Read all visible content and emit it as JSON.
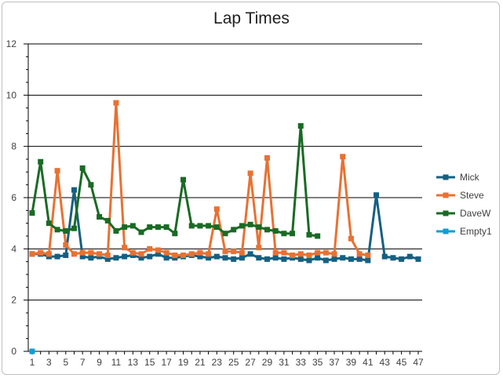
{
  "chart_data": {
    "type": "line",
    "title": "Lap Times",
    "xlabel": "",
    "ylabel": "",
    "ylim": [
      0,
      12
    ],
    "yticks": [
      0,
      2,
      4,
      6,
      8,
      10,
      12
    ],
    "xlim": [
      1,
      47
    ],
    "xticks": [
      1,
      3,
      5,
      7,
      9,
      11,
      13,
      15,
      17,
      19,
      21,
      23,
      25,
      27,
      29,
      31,
      33,
      35,
      37,
      39,
      41,
      43,
      45,
      47
    ],
    "grid": "horizontal",
    "legend": "right",
    "series": [
      {
        "name": "Mick",
        "color": "#156082",
        "x": [
          1,
          2,
          3,
          4,
          5,
          6,
          7,
          8,
          9,
          10,
          11,
          12,
          13,
          14,
          15,
          16,
          17,
          18,
          19,
          20,
          21,
          22,
          23,
          24,
          25,
          26,
          27,
          28,
          29,
          30,
          31,
          32,
          33,
          34,
          35,
          36,
          37,
          38,
          39,
          40,
          41,
          42,
          43,
          44,
          45,
          46,
          47
        ],
        "values": [
          3.8,
          3.8,
          3.7,
          3.7,
          3.75,
          6.3,
          3.7,
          3.65,
          3.7,
          3.6,
          3.65,
          3.7,
          3.75,
          3.65,
          3.7,
          3.8,
          3.65,
          3.65,
          3.7,
          3.75,
          3.7,
          3.65,
          3.7,
          3.65,
          3.6,
          3.65,
          3.8,
          3.65,
          3.6,
          3.65,
          3.6,
          3.65,
          3.6,
          3.55,
          3.65,
          3.55,
          3.6,
          3.65,
          3.6,
          3.6,
          3.55,
          6.1,
          3.7,
          3.65,
          3.6,
          3.7,
          3.6
        ]
      },
      {
        "name": "Steve",
        "color": "#E97132",
        "x": [
          1,
          2,
          3,
          4,
          5,
          6,
          7,
          8,
          9,
          10,
          11,
          12,
          13,
          14,
          15,
          16,
          17,
          18,
          19,
          20,
          21,
          22,
          23,
          24,
          25,
          26,
          27,
          28,
          29,
          30,
          31,
          32,
          33,
          34,
          35,
          36,
          37,
          38,
          39,
          40,
          41
        ],
        "values": [
          3.8,
          3.85,
          3.8,
          7.05,
          4.15,
          3.8,
          3.85,
          3.85,
          3.8,
          3.75,
          9.7,
          4.05,
          3.85,
          3.8,
          4.0,
          3.95,
          3.85,
          3.75,
          3.75,
          3.8,
          3.85,
          3.8,
          5.55,
          3.9,
          3.9,
          3.85,
          6.95,
          4.05,
          7.55,
          3.85,
          3.85,
          3.75,
          3.8,
          3.75,
          3.85,
          3.85,
          3.8,
          7.6,
          4.4,
          3.8,
          3.75
        ]
      },
      {
        "name": "DaveW",
        "color": "#196B24",
        "x": [
          1,
          2,
          3,
          4,
          5,
          6,
          7,
          8,
          9,
          10,
          11,
          12,
          13,
          14,
          15,
          16,
          17,
          18,
          19,
          20,
          21,
          22,
          23,
          24,
          25,
          26,
          27,
          28,
          29,
          30,
          31,
          32,
          33,
          34,
          35
        ],
        "values": [
          5.4,
          7.4,
          5.0,
          4.75,
          4.7,
          4.8,
          7.15,
          6.5,
          5.25,
          5.1,
          4.7,
          4.85,
          4.9,
          4.65,
          4.85,
          4.85,
          4.85,
          4.6,
          6.7,
          4.9,
          4.9,
          4.9,
          4.85,
          4.6,
          4.75,
          4.9,
          4.95,
          4.85,
          4.75,
          4.7,
          4.6,
          4.6,
          8.8,
          4.55,
          4.5
        ]
      },
      {
        "name": "Empty1",
        "color": "#0F9ED5",
        "x": [
          1
        ],
        "values": [
          0
        ]
      }
    ]
  }
}
